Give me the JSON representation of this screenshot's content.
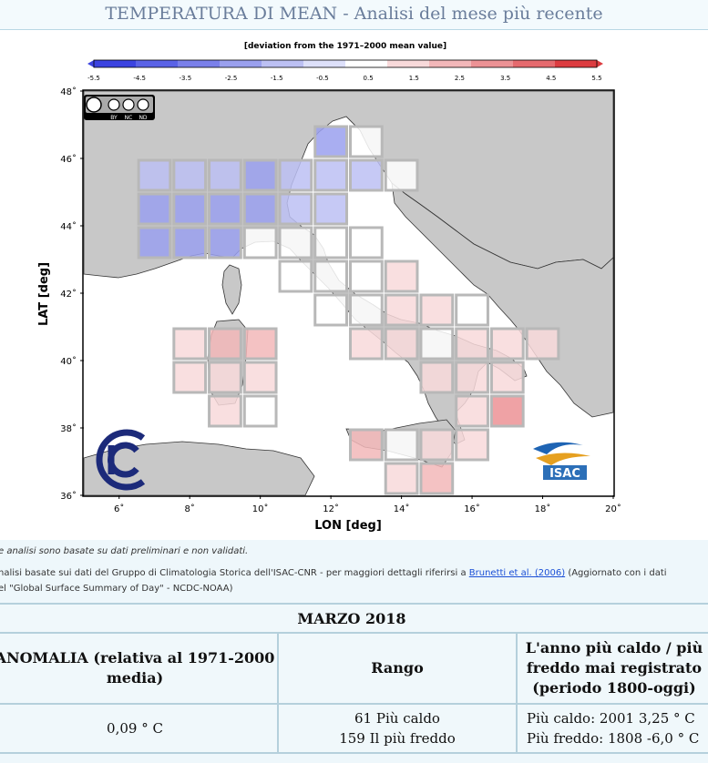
{
  "page": {
    "title": "TEMPERATURA DI MEAN - Analisi del mese più recente"
  },
  "map": {
    "colorbar_title": "[deviation from the 1971–2000 mean value]",
    "colorbar_ticks": [
      "-5.5",
      "-4.5",
      "-3.5",
      "-2.5",
      "-1.5",
      "-0.5",
      "0.5",
      "1.5",
      "2.5",
      "3.5",
      "4.5",
      "5.5"
    ],
    "colorbar_colors": [
      "#3b43e0",
      "#5a62e6",
      "#7a80ea",
      "#9aa0ee",
      "#bcc0f3",
      "#dde0fa",
      "#ffffff",
      "#f8d9da",
      "#f2b7b9",
      "#ec9295",
      "#e56a6e",
      "#dc3c40"
    ],
    "xlabel": "LON [deg]",
    "ylabel": "LAT [deg]",
    "x_ticks": [
      "6˚",
      "8˚",
      "10˚",
      "12˚",
      "14˚",
      "16˚",
      "18˚",
      "20˚"
    ],
    "y_ticks": [
      "48˚",
      "46˚",
      "44˚",
      "42˚",
      "40˚",
      "38˚",
      "36˚"
    ],
    "cc_badge": [
      "BY",
      "NC",
      "ND"
    ],
    "isac_label": "ISAC"
  },
  "chart_data": {
    "type": "heatmap",
    "title": "[deviation from the 1971–2000 mean value]",
    "xlabel": "LON [deg]",
    "ylabel": "LAT [deg]",
    "xlim": [
      5,
      20
    ],
    "ylim": [
      36,
      48
    ],
    "legend_range": [
      -5.5,
      5.5
    ],
    "cells": [
      {
        "lon": 12,
        "lat": 46.5,
        "value": -2.0
      },
      {
        "lon": 13,
        "lat": 46.5,
        "value": 0.0
      },
      {
        "lon": 7,
        "lat": 45.5,
        "value": -1.0
      },
      {
        "lon": 8,
        "lat": 45.5,
        "value": -1.0
      },
      {
        "lon": 9,
        "lat": 45.5,
        "value": -1.0
      },
      {
        "lon": 10,
        "lat": 45.5,
        "value": -2.0
      },
      {
        "lon": 11,
        "lat": 45.5,
        "value": -1.0
      },
      {
        "lon": 12,
        "lat": 45.5,
        "value": -1.0
      },
      {
        "lon": 13,
        "lat": 45.5,
        "value": -1.0
      },
      {
        "lon": 14,
        "lat": 45.5,
        "value": 0.0
      },
      {
        "lon": 7,
        "lat": 44.5,
        "value": -2.0
      },
      {
        "lon": 8,
        "lat": 44.5,
        "value": -2.0
      },
      {
        "lon": 9,
        "lat": 44.5,
        "value": -2.0
      },
      {
        "lon": 10,
        "lat": 44.5,
        "value": -2.0
      },
      {
        "lon": 11,
        "lat": 44.5,
        "value": -1.0
      },
      {
        "lon": 12,
        "lat": 44.5,
        "value": -1.0
      },
      {
        "lon": 7,
        "lat": 43.5,
        "value": -2.0
      },
      {
        "lon": 8,
        "lat": 43.5,
        "value": -2.0
      },
      {
        "lon": 9,
        "lat": 43.5,
        "value": -2.0
      },
      {
        "lon": 10,
        "lat": 43.5,
        "value": 0.0
      },
      {
        "lon": 11,
        "lat": 43.5,
        "value": 0.0
      },
      {
        "lon": 12,
        "lat": 43.5,
        "value": 0.0
      },
      {
        "lon": 13,
        "lat": 43.5,
        "value": 0.0
      },
      {
        "lon": 11,
        "lat": 42.5,
        "value": 0.0
      },
      {
        "lon": 12,
        "lat": 42.5,
        "value": 0.0
      },
      {
        "lon": 13,
        "lat": 42.5,
        "value": 0.0
      },
      {
        "lon": 14,
        "lat": 42.5,
        "value": 1.0
      },
      {
        "lon": 12,
        "lat": 41.5,
        "value": 0.0
      },
      {
        "lon": 13,
        "lat": 41.5,
        "value": 0.0
      },
      {
        "lon": 14,
        "lat": 41.5,
        "value": 1.0
      },
      {
        "lon": 15,
        "lat": 41.5,
        "value": 1.0
      },
      {
        "lon": 16,
        "lat": 41.5,
        "value": 0.0
      },
      {
        "lon": 8,
        "lat": 40.5,
        "value": 1.0
      },
      {
        "lon": 9,
        "lat": 40.5,
        "value": 2.0
      },
      {
        "lon": 10,
        "lat": 40.5,
        "value": 2.5
      },
      {
        "lon": 13,
        "lat": 40.5,
        "value": 1.0
      },
      {
        "lon": 14,
        "lat": 40.5,
        "value": 1.0
      },
      {
        "lon": 15,
        "lat": 40.5,
        "value": 0.0
      },
      {
        "lon": 16,
        "lat": 40.5,
        "value": 1.0
      },
      {
        "lon": 17,
        "lat": 40.5,
        "value": 1.0
      },
      {
        "lon": 18,
        "lat": 40.5,
        "value": 1.0
      },
      {
        "lon": 8,
        "lat": 39.5,
        "value": 1.0
      },
      {
        "lon": 9,
        "lat": 39.5,
        "value": 1.0
      },
      {
        "lon": 10,
        "lat": 39.5,
        "value": 1.0
      },
      {
        "lon": 15,
        "lat": 39.5,
        "value": 1.0
      },
      {
        "lon": 16,
        "lat": 39.5,
        "value": 1.0
      },
      {
        "lon": 17,
        "lat": 39.5,
        "value": 1.0
      },
      {
        "lon": 9,
        "lat": 38.5,
        "value": 1.0
      },
      {
        "lon": 10,
        "lat": 38.5,
        "value": 0.0
      },
      {
        "lon": 16,
        "lat": 38.5,
        "value": 1.0
      },
      {
        "lon": 17,
        "lat": 38.5,
        "value": 3.0
      },
      {
        "lon": 13,
        "lat": 37.5,
        "value": 2.0
      },
      {
        "lon": 14,
        "lat": 37.5,
        "value": 0.0
      },
      {
        "lon": 15,
        "lat": 37.5,
        "value": 1.0
      },
      {
        "lon": 16,
        "lat": 37.5,
        "value": 1.0
      },
      {
        "lon": 14,
        "lat": 36.5,
        "value": 1.0
      },
      {
        "lon": 15,
        "lat": 36.5,
        "value": 2.0
      }
    ]
  },
  "notes": {
    "line1": "e analisi sono basate su dati preliminari e non validati.",
    "line2_prefix": "nalisi basate sui dati del Gruppo di Climatologia Storica dell'ISAC-CNR - per maggiori dettagli riferirsi a ",
    "line2_link": "Brunetti et al. (2006)",
    "line2_suffix": " (Aggiornato con i dati",
    "line3": "el \"Global Surface Summary of Day\" - NCDC-NOAA)"
  },
  "stats": {
    "month": "MARZO 2018",
    "col1_header": "ANOMALIA (relativa al 1971-2000 media)",
    "col2_header": "Rango",
    "col3_header": "L'anno più caldo / più freddo mai registrato (periodo 1800-oggi)",
    "anomaly": "0,09 ° C",
    "rank_warm": "61 Più caldo",
    "rank_cold": "159 Il più freddo",
    "record_warm": "Più caldo: 2001 3,25 ° C",
    "record_cold": "Più freddo: 1808 -6,0 ° C"
  }
}
